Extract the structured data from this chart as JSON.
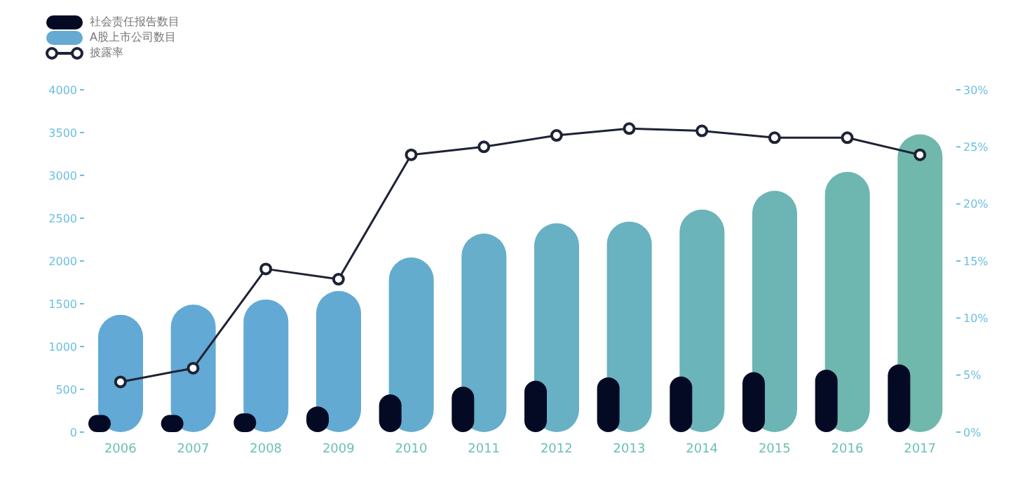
{
  "chart_data": {
    "type": "bar",
    "categories": [
      "2006",
      "2007",
      "2008",
      "2009",
      "2010",
      "2011",
      "2012",
      "2013",
      "2014",
      "2015",
      "2016",
      "2017"
    ],
    "series": [
      {
        "name": "社会责任报告数目",
        "color": "#050a24",
        "values": [
          200,
          200,
          220,
          300,
          440,
          530,
          600,
          640,
          650,
          700,
          730,
          790
        ]
      },
      {
        "name": "A股上市公司数目",
        "color": "#64aad3",
        "colors": [
          "#62a9d5",
          "#62a9d5",
          "#62a9d5",
          "#63aad3",
          "#64acce",
          "#66aec9",
          "#68b0c4",
          "#69b2bf",
          "#6bb4b9",
          "#6cb5b4",
          "#6db7b0",
          "#6fb8ab"
        ],
        "values": [
          1370,
          1490,
          1550,
          1650,
          2040,
          2320,
          2440,
          2460,
          2600,
          2820,
          3040,
          3480
        ]
      },
      {
        "name": "披露率",
        "type": "line",
        "axis": "y2",
        "color": "#1e2235",
        "values": [
          4.4,
          5.6,
          14.3,
          13.4,
          24.3,
          25.0,
          26.0,
          26.6,
          26.4,
          25.8,
          25.8,
          24.3
        ]
      }
    ],
    "ylim": [
      0,
      4000
    ],
    "yticks": [
      0,
      500,
      1000,
      1500,
      2000,
      2500,
      3000,
      3500,
      4000
    ],
    "y2lim": [
      0,
      30
    ],
    "y2ticks": [
      {
        "value": 0,
        "label": "0%"
      },
      {
        "value": 5,
        "label": "5%"
      },
      {
        "value": 10,
        "label": "10%"
      },
      {
        "value": 15,
        "label": "15%"
      },
      {
        "value": 20,
        "label": "20%"
      },
      {
        "value": 25,
        "label": "25%"
      },
      {
        "value": 30,
        "label": "30%"
      }
    ],
    "legend": "top left",
    "marker": "circle",
    "line_style": "solid",
    "grid": false
  }
}
